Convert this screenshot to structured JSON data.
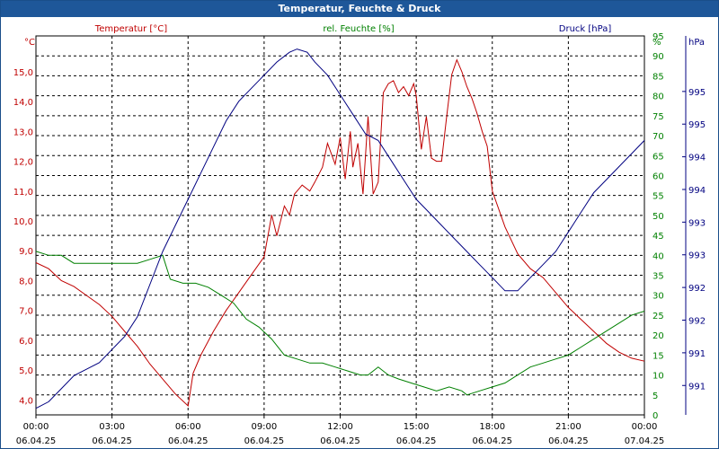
{
  "window": {
    "title": "Temperatur, Feuchte & Druck"
  },
  "chart_data": {
    "type": "line",
    "title": "Temperatur, Feuchte & Druck",
    "x_hours": {
      "min": 0,
      "max": 24
    },
    "x_ticks": [
      {
        "h": 0,
        "time": "00:00",
        "date": "06.04.25"
      },
      {
        "h": 3,
        "time": "03:00",
        "date": "06.04.25"
      },
      {
        "h": 6,
        "time": "06:00",
        "date": "06.04.25"
      },
      {
        "h": 9,
        "time": "09:00",
        "date": "06.04.25"
      },
      {
        "h": 12,
        "time": "12:00",
        "date": "06.04.25"
      },
      {
        "h": 15,
        "time": "15:00",
        "date": "06.04.25"
      },
      {
        "h": 18,
        "time": "18:00",
        "date": "06.04.25"
      },
      {
        "h": 21,
        "time": "21:00",
        "date": "06.04.25"
      },
      {
        "h": 24,
        "time": "00:00",
        "date": "07.04.25"
      }
    ],
    "axes": {
      "temp": {
        "label": "Temperatur [°C]",
        "unit": "°C",
        "color": "#c00000",
        "ylim": [
          3.5,
          16.2
        ],
        "ticks": [
          "4,0",
          "5,0",
          "6,0",
          "7,0",
          "8,0",
          "9,0",
          "10,0",
          "11,0",
          "12,0",
          "13,0",
          "14,0",
          "15,0"
        ],
        "tick_values": [
          4,
          5,
          6,
          7,
          8,
          9,
          10,
          11,
          12,
          13,
          14,
          15
        ]
      },
      "hum": {
        "label": "rel. Feuchte [%]",
        "unit": "%",
        "color": "#008000",
        "ylim": [
          0,
          95
        ],
        "ticks": [
          "0",
          "5",
          "10",
          "15",
          "20",
          "25",
          "30",
          "35",
          "40",
          "45",
          "50",
          "55",
          "60",
          "65",
          "70",
          "75",
          "80",
          "85",
          "90",
          "95"
        ],
        "tick_values": [
          0,
          5,
          10,
          15,
          20,
          25,
          30,
          35,
          40,
          45,
          50,
          55,
          60,
          65,
          70,
          75,
          80,
          85,
          90,
          95
        ]
      },
      "pres": {
        "label": "Druck [hPa]",
        "unit": "hPa",
        "color": "#000080",
        "ylim": [
          990.3,
          996.1
        ],
        "ticks": [
          "991",
          "991",
          "992",
          "992",
          "993",
          "993",
          "994",
          "994",
          "995",
          "995"
        ],
        "tick_values": [
          990.75,
          991.25,
          991.75,
          992.25,
          992.75,
          993.25,
          993.75,
          994.25,
          994.75,
          995.25
        ]
      }
    },
    "series": [
      {
        "name": "Temperatur [°C]",
        "axis": "temp",
        "color": "#c00000",
        "x": [
          0,
          0.5,
          1,
          1.5,
          2,
          2.5,
          3,
          3.5,
          4,
          4.5,
          5,
          5.5,
          6,
          6.2,
          6.5,
          7,
          7.5,
          8,
          8.5,
          9,
          9.3,
          9.5,
          9.8,
          10,
          10.2,
          10.5,
          10.8,
          11,
          11.3,
          11.5,
          11.8,
          12,
          12.2,
          12.4,
          12.5,
          12.7,
          12.9,
          13.1,
          13.3,
          13.5,
          13.7,
          13.9,
          14.1,
          14.3,
          14.5,
          14.7,
          14.9,
          15,
          15.2,
          15.4,
          15.6,
          15.8,
          16,
          16.2,
          16.4,
          16.6,
          16.8,
          17,
          17.2,
          17.4,
          17.6,
          17.8,
          18,
          18.5,
          19,
          19.5,
          20,
          20.5,
          21,
          21.5,
          22,
          22.5,
          23,
          23.5,
          24
        ],
        "values": [
          8.6,
          8.4,
          8.0,
          7.8,
          7.5,
          7.2,
          6.8,
          6.3,
          5.8,
          5.2,
          4.7,
          4.2,
          3.8,
          4.9,
          5.5,
          6.3,
          7.0,
          7.6,
          8.2,
          8.8,
          10.2,
          9.5,
          10.5,
          10.2,
          10.9,
          11.2,
          11.0,
          11.3,
          11.8,
          12.6,
          11.9,
          12.8,
          11.4,
          13.0,
          11.8,
          12.6,
          10.9,
          13.5,
          10.9,
          11.3,
          14.3,
          14.6,
          14.7,
          14.3,
          14.5,
          14.2,
          14.6,
          14.2,
          12.4,
          13.5,
          12.1,
          12.0,
          12.0,
          13.5,
          14.9,
          15.4,
          15.0,
          14.5,
          14.1,
          13.6,
          13.0,
          12.5,
          11.0,
          9.8,
          8.9,
          8.4,
          8.1,
          7.6,
          7.1,
          6.7,
          6.3,
          5.9,
          5.6,
          5.4,
          5.3
        ]
      },
      {
        "name": "rel. Feuchte [%]",
        "axis": "hum",
        "color": "#008000",
        "x": [
          0,
          0.5,
          1,
          1.5,
          2,
          2.5,
          3,
          3.5,
          4,
          4.5,
          5,
          5.3,
          5.8,
          6.3,
          6.8,
          7.3,
          7.8,
          8.3,
          8.8,
          9.3,
          9.8,
          10.3,
          10.8,
          11.3,
          11.8,
          12.3,
          12.8,
          13.1,
          13.5,
          13.9,
          14.3,
          14.8,
          15.3,
          15.8,
          16.3,
          16.8,
          17,
          17.5,
          18,
          18.5,
          19,
          19.5,
          20,
          20.5,
          21,
          21.5,
          22,
          22.5,
          23,
          23.5,
          24
        ],
        "values": [
          41,
          40,
          40,
          38,
          38,
          38,
          38,
          38,
          38,
          39,
          40,
          34,
          33,
          33,
          32,
          30,
          28,
          24,
          22,
          19,
          15,
          14,
          13,
          13,
          12,
          11,
          10,
          10,
          12,
          10,
          9,
          8,
          7,
          6,
          7,
          6,
          5,
          6,
          7,
          8,
          10,
          12,
          13,
          14,
          15,
          17,
          19,
          21,
          23,
          25,
          26
        ]
      },
      {
        "name": "Druck [hPa]",
        "axis": "pres",
        "color": "#000080",
        "x": [
          0,
          0.5,
          1,
          1.5,
          2,
          2.5,
          3,
          3.5,
          4,
          4.5,
          5,
          5.5,
          6,
          6.5,
          7,
          7.5,
          8,
          8.5,
          9,
          9.5,
          10,
          10.3,
          10.7,
          11,
          11.5,
          12,
          12.5,
          13,
          13.5,
          14,
          14.5,
          15,
          15.5,
          16,
          16.5,
          17,
          17.5,
          18,
          18.5,
          19,
          19.5,
          20,
          20.5,
          21,
          21.5,
          22,
          22.5,
          23,
          23.5,
          24
        ],
        "values": [
          990.4,
          990.5,
          990.7,
          990.9,
          991.0,
          991.1,
          991.3,
          991.5,
          991.8,
          992.3,
          992.8,
          993.2,
          993.6,
          994.0,
          994.4,
          994.8,
          995.1,
          995.3,
          995.5,
          995.7,
          995.85,
          995.9,
          995.85,
          995.7,
          995.5,
          995.2,
          994.9,
          994.6,
          994.5,
          994.2,
          993.9,
          993.6,
          993.4,
          993.2,
          993.0,
          992.8,
          992.6,
          992.4,
          992.2,
          992.2,
          992.4,
          992.6,
          992.8,
          993.1,
          993.4,
          993.7,
          993.9,
          994.1,
          994.3,
          994.5
        ]
      }
    ]
  }
}
